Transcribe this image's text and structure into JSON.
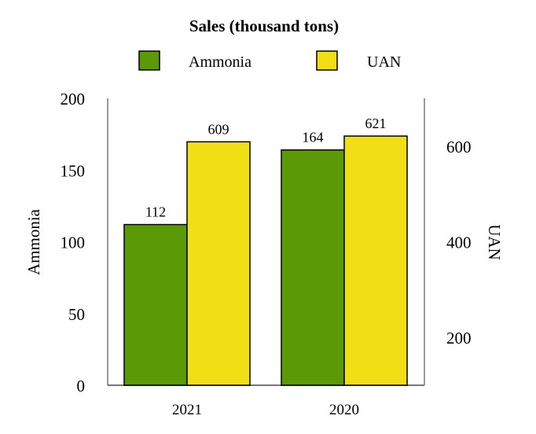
{
  "chart_data": {
    "type": "bar",
    "title": "Sales (thousand tons)",
    "categories": [
      "2021",
      "2020"
    ],
    "series": [
      {
        "name": "Ammonia",
        "values": [
          112,
          164
        ],
        "axis": "left",
        "color": "#5b9a06"
      },
      {
        "name": "UAN",
        "values": [
          609,
          621
        ],
        "axis": "right",
        "color": "#f0df14"
      }
    ],
    "y_left": {
      "label": "Ammonia",
      "min": 0,
      "max": 200,
      "ticks": [
        0,
        50,
        100,
        150,
        200
      ]
    },
    "y_right": {
      "label": "UAN",
      "min": 100,
      "max": 700,
      "ticks": [
        200,
        400,
        600
      ]
    },
    "legend_position": "top",
    "grid": false
  }
}
